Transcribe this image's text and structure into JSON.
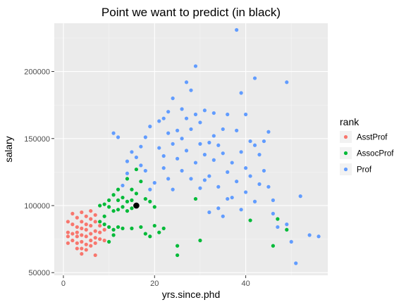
{
  "chart_data": {
    "type": "scatter",
    "title": "Point we want to predict (in black)",
    "xlabel": "yrs.since.phd",
    "ylabel": "salary",
    "xlim": [
      -2,
      58
    ],
    "ylim": [
      48000,
      236000
    ],
    "x_ticks": [
      0,
      20,
      40
    ],
    "x_tick_labels": [
      "0",
      "20",
      "40"
    ],
    "y_ticks": [
      50000,
      100000,
      150000,
      200000
    ],
    "y_tick_labels": [
      "50000",
      "100000",
      "150000",
      "200000"
    ],
    "grid": true,
    "legend": {
      "title": "rank",
      "position": "right",
      "entries": [
        {
          "label": "AsstProf",
          "color": "#F8766D"
        },
        {
          "label": "AssocProf",
          "color": "#00BA38"
        },
        {
          "label": "Prof",
          "color": "#619CFF"
        }
      ]
    },
    "highlight_point": {
      "x": 16,
      "y": 100000,
      "color": "#000000"
    },
    "series": [
      {
        "name": "AsstProf",
        "color": "#F8766D",
        "points": [
          [
            1,
            88000
          ],
          [
            1,
            80000
          ],
          [
            1,
            77000
          ],
          [
            1,
            72000
          ],
          [
            2,
            94000
          ],
          [
            2,
            86000
          ],
          [
            2,
            79000
          ],
          [
            2,
            74000
          ],
          [
            3,
            91000
          ],
          [
            3,
            84000
          ],
          [
            3,
            80000
          ],
          [
            3,
            77000
          ],
          [
            3,
            72000
          ],
          [
            3,
            68000
          ],
          [
            4,
            95000
          ],
          [
            4,
            88000
          ],
          [
            4,
            83000
          ],
          [
            4,
            78000
          ],
          [
            4,
            73000
          ],
          [
            4,
            68000
          ],
          [
            4,
            64000
          ],
          [
            5,
            92000
          ],
          [
            5,
            86000
          ],
          [
            5,
            82000
          ],
          [
            5,
            77000
          ],
          [
            5,
            71000
          ],
          [
            5,
            67000
          ],
          [
            6,
            96000
          ],
          [
            6,
            90000
          ],
          [
            6,
            85000
          ],
          [
            6,
            79000
          ],
          [
            6,
            74000
          ],
          [
            6,
            70000
          ],
          [
            7,
            93000
          ],
          [
            7,
            88000
          ],
          [
            7,
            81000
          ],
          [
            7,
            76000
          ],
          [
            7,
            72000
          ],
          [
            7,
            63000
          ],
          [
            8,
            85000
          ],
          [
            8,
            80000
          ],
          [
            8,
            75000
          ],
          [
            9,
            82000
          ],
          [
            9,
            74000
          ]
        ]
      },
      {
        "name": "AssocProf",
        "color": "#00BA38",
        "points": [
          [
            8,
            100000
          ],
          [
            8,
            88000
          ],
          [
            9,
            101000
          ],
          [
            9,
            92000
          ],
          [
            9,
            86000
          ],
          [
            10,
            104000
          ],
          [
            10,
            99000
          ],
          [
            10,
            84000
          ],
          [
            10,
            73000
          ],
          [
            11,
            108000
          ],
          [
            11,
            96000
          ],
          [
            11,
            82000
          ],
          [
            11,
            78000
          ],
          [
            12,
            112000
          ],
          [
            12,
            104000
          ],
          [
            12,
            97000
          ],
          [
            12,
            84000
          ],
          [
            13,
            106000
          ],
          [
            13,
            99000
          ],
          [
            13,
            83000
          ],
          [
            14,
            120000
          ],
          [
            14,
            103000
          ],
          [
            14,
            96000
          ],
          [
            15,
            112000
          ],
          [
            15,
            104000
          ],
          [
            15,
            98000
          ],
          [
            15,
            83000
          ],
          [
            16,
            127000
          ],
          [
            16,
            109000
          ],
          [
            17,
            118000
          ],
          [
            17,
            84000
          ],
          [
            18,
            105000
          ],
          [
            18,
            79000
          ],
          [
            19,
            103000
          ],
          [
            19,
            77000
          ],
          [
            20,
            99000
          ],
          [
            20,
            85000
          ],
          [
            21,
            80000
          ],
          [
            22,
            83000
          ],
          [
            25,
            63000
          ],
          [
            25,
            70000
          ],
          [
            29,
            105000
          ],
          [
            30,
            74000
          ],
          [
            41,
            89000
          ],
          [
            46,
            70000
          ],
          [
            47,
            90000
          ],
          [
            49,
            82000
          ]
        ]
      },
      {
        "name": "Prof",
        "color": "#619CFF",
        "points": [
          [
            11,
            154000
          ],
          [
            12,
            151000
          ],
          [
            13,
            115000
          ],
          [
            14,
            133000
          ],
          [
            14,
            124000
          ],
          [
            15,
            140000
          ],
          [
            16,
            136000
          ],
          [
            17,
            144000
          ],
          [
            17,
            130000
          ],
          [
            18,
            151000
          ],
          [
            18,
            126000
          ],
          [
            19,
            159000
          ],
          [
            19,
            112000
          ],
          [
            20,
            117000
          ],
          [
            21,
            163000
          ],
          [
            21,
            143000
          ],
          [
            22,
            165000
          ],
          [
            22,
            137000
          ],
          [
            22,
            128000
          ],
          [
            23,
            170000
          ],
          [
            23,
            154000
          ],
          [
            23,
            120000
          ],
          [
            24,
            180000
          ],
          [
            24,
            146000
          ],
          [
            24,
            112000
          ],
          [
            25,
            156000
          ],
          [
            25,
            135000
          ],
          [
            26,
            172000
          ],
          [
            26,
            150000
          ],
          [
            26,
            126000
          ],
          [
            27,
            192000
          ],
          [
            27,
            165000
          ],
          [
            27,
            141000
          ],
          [
            28,
            186000
          ],
          [
            28,
            157000
          ],
          [
            28,
            120000
          ],
          [
            29,
            204000
          ],
          [
            29,
            168000
          ],
          [
            29,
            132000
          ],
          [
            30,
            162000
          ],
          [
            30,
            146000
          ],
          [
            30,
            113000
          ],
          [
            31,
            171000
          ],
          [
            31,
            138000
          ],
          [
            31,
            119000
          ],
          [
            32,
            147000
          ],
          [
            32,
            122000
          ],
          [
            32,
            95000
          ],
          [
            33,
            169000
          ],
          [
            33,
            152000
          ],
          [
            33,
            134000
          ],
          [
            34,
            145000
          ],
          [
            34,
            114000
          ],
          [
            34,
            98000
          ],
          [
            35,
            157000
          ],
          [
            35,
            139000
          ],
          [
            35,
            92000
          ],
          [
            36,
            168000
          ],
          [
            36,
            125000
          ],
          [
            36,
            105000
          ],
          [
            37,
            132000
          ],
          [
            37,
            106000
          ],
          [
            38,
            231000
          ],
          [
            38,
            156000
          ],
          [
            38,
            118000
          ],
          [
            39,
            184000
          ],
          [
            39,
            140000
          ],
          [
            39,
            97000
          ],
          [
            40,
            168000
          ],
          [
            40,
            128000
          ],
          [
            40,
            110000
          ],
          [
            41,
            148000
          ],
          [
            41,
            122000
          ],
          [
            42,
            195000
          ],
          [
            42,
            145000
          ],
          [
            42,
            103000
          ],
          [
            43,
            138000
          ],
          [
            43,
            116000
          ],
          [
            44,
            148000
          ],
          [
            44,
            126000
          ],
          [
            45,
            155000
          ],
          [
            45,
            114000
          ],
          [
            46,
            104000
          ],
          [
            46,
            94000
          ],
          [
            47,
            84000
          ],
          [
            49,
            192000
          ],
          [
            49,
            86000
          ],
          [
            50,
            73000
          ],
          [
            51,
            57000
          ],
          [
            52,
            107000
          ],
          [
            54,
            78000
          ],
          [
            56,
            77000
          ]
        ]
      }
    ]
  }
}
